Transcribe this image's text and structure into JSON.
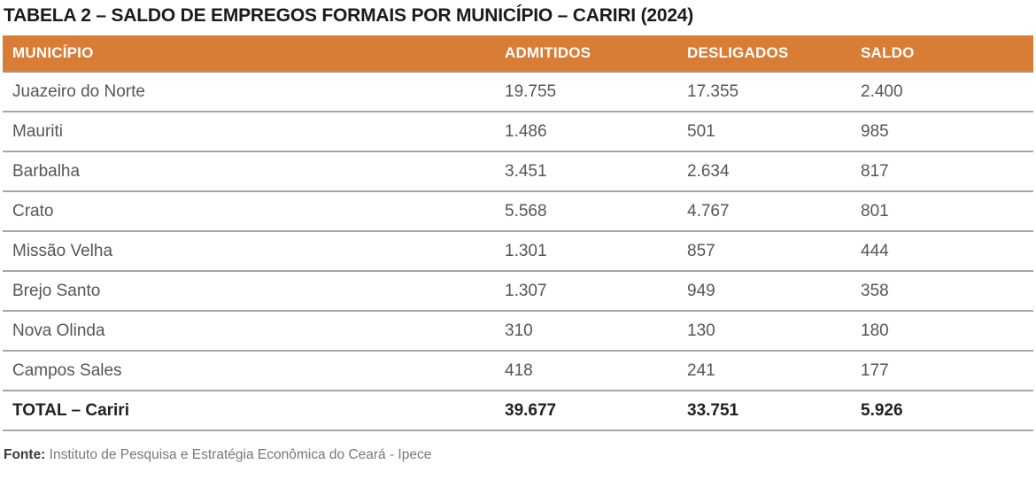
{
  "title": "TABELA 2 – SALDO DE EMPREGOS FORMAIS POR MUNICÍPIO – CARIRI (2024)",
  "table": {
    "columns": [
      "MUNICÍPIO",
      "ADMITIDOS",
      "DESLIGADOS",
      "SALDO"
    ],
    "rows": [
      {
        "municipio": "Juazeiro do Norte",
        "admitidos": "19.755",
        "desligados": "17.355",
        "saldo": "2.400"
      },
      {
        "municipio": "Mauriti",
        "admitidos": "1.486",
        "desligados": "501",
        "saldo": "985"
      },
      {
        "municipio": "Barbalha",
        "admitidos": "3.451",
        "desligados": "2.634",
        "saldo": "817"
      },
      {
        "municipio": "Crato",
        "admitidos": "5.568",
        "desligados": "4.767",
        "saldo": "801"
      },
      {
        "municipio": "Missão Velha",
        "admitidos": "1.301",
        "desligados": "857",
        "saldo": "444"
      },
      {
        "municipio": "Brejo Santo",
        "admitidos": "1.307",
        "desligados": "949",
        "saldo": "358"
      },
      {
        "municipio": "Nova Olinda",
        "admitidos": "310",
        "desligados": "130",
        "saldo": "180"
      },
      {
        "municipio": "Campos Sales",
        "admitidos": "418",
        "desligados": "241",
        "saldo": "177"
      }
    ],
    "total": {
      "municipio": "TOTAL – Cariri",
      "admitidos": "39.677",
      "desligados": "33.751",
      "saldo": "5.926"
    }
  },
  "footer": {
    "label": "Fonte:",
    "text": "Instituto de Pesquisa e Estratégia Econômica do Ceará - Ipece"
  },
  "chart_data": {
    "type": "table",
    "title": "TABELA 2 – SALDO DE EMPREGOS FORMAIS POR MUNICÍPIO – CARIRI (2024)",
    "columns": [
      "MUNICÍPIO",
      "ADMITIDOS",
      "DESLIGADOS",
      "SALDO"
    ],
    "rows": [
      [
        "Juazeiro do Norte",
        19755,
        17355,
        2400
      ],
      [
        "Mauriti",
        1486,
        501,
        985
      ],
      [
        "Barbalha",
        3451,
        2634,
        817
      ],
      [
        "Crato",
        5568,
        4767,
        801
      ],
      [
        "Missão Velha",
        1301,
        857,
        444
      ],
      [
        "Brejo Santo",
        1307,
        949,
        358
      ],
      [
        "Nova Olinda",
        310,
        130,
        180
      ],
      [
        "Campos Sales",
        418,
        241,
        177
      ],
      [
        "TOTAL – Cariri",
        39677,
        33751,
        5926
      ]
    ]
  },
  "colors": {
    "background": "#FFFFFF",
    "header_bg": "#D97C35",
    "header_text": "#FFFFFF",
    "header_divider": "#97989B",
    "title_text": "#1B1B1B",
    "row_text": "#55565A",
    "total_text": "#232020",
    "divider": "#A5A7AA",
    "source_label": "#3B3B3D",
    "source_text": "#77787B"
  }
}
